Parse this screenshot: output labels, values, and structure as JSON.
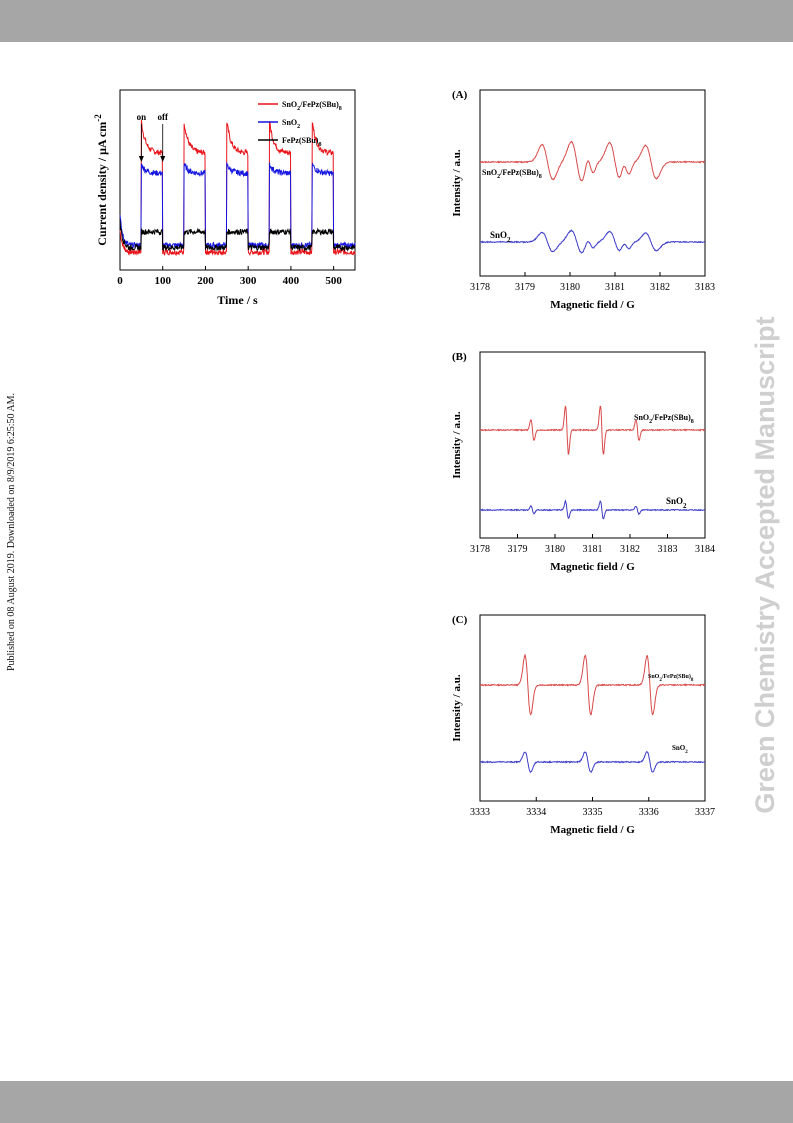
{
  "page": {
    "side_note": "Published on 08 August 2019. Downloaded on 8/9/2019 6:25:50 AM.",
    "watermark": "Green Chemistry Accepted Manuscript"
  },
  "chart_data": [
    {
      "type": "line",
      "panel": "photocurrent",
      "xlabel": "Time / s",
      "ylabel": "Current density / μA cm",
      "ylabel_superscript": "-2",
      "xlim": [
        0,
        550
      ],
      "xticks": [
        0,
        100,
        200,
        300,
        400,
        500
      ],
      "annotations": [
        {
          "text": "on",
          "x": 50
        },
        {
          "text": "off",
          "x": 100
        }
      ],
      "legend": [
        {
          "label": "SnO2/FePz(SBu)8",
          "color": "#e8141a"
        },
        {
          "label": "SnO2",
          "color": "#1515e0"
        },
        {
          "label": "FePz(SBu)8",
          "color": "#000000"
        }
      ],
      "on_intervals": [
        [
          50,
          100
        ],
        [
          150,
          200
        ],
        [
          250,
          300
        ],
        [
          350,
          400
        ],
        [
          450,
          500
        ]
      ],
      "series": [
        {
          "name": "SnO2/FePz(SBu)8",
          "color": "#e8141a",
          "dark": 0.8,
          "peak": 6.6,
          "plateau": 5.2
        },
        {
          "name": "SnO2",
          "color": "#1515e0",
          "dark": 1.1,
          "peak": 4.7,
          "plateau": 4.3
        },
        {
          "name": "FePz(SBu)8",
          "color": "#000000",
          "dark": 1.0,
          "peak": 1.7,
          "plateau": 1.7
        }
      ]
    },
    {
      "type": "line",
      "panel": "(A)",
      "xlabel": "Magnetic field / G",
      "ylabel": "Intensity / a.u.",
      "xlim": [
        3178,
        3183
      ],
      "xticks": [
        3178,
        3179,
        3180,
        3181,
        3182,
        3183
      ],
      "series": [
        {
          "name": "SnO2/FePz(SBu)8",
          "color": "#d84a4a",
          "peaks": [
            {
              "x": 3179.5,
              "a": 1.0,
              "w": 0.12
            },
            {
              "x": 3180.15,
              "a": 1.15,
              "w": 0.12
            },
            {
              "x": 3180.45,
              "a": 0.55,
              "w": 0.07
            },
            {
              "x": 3181.0,
              "a": 1.1,
              "w": 0.12
            },
            {
              "x": 3181.25,
              "a": 0.55,
              "w": 0.07
            },
            {
              "x": 3181.8,
              "a": 0.95,
              "w": 0.12
            }
          ]
        },
        {
          "name": "SnO2",
          "color": "#3b3bc8",
          "peaks": [
            {
              "x": 3179.5,
              "a": 0.55,
              "w": 0.12
            },
            {
              "x": 3180.15,
              "a": 0.65,
              "w": 0.12
            },
            {
              "x": 3180.45,
              "a": 0.3,
              "w": 0.07
            },
            {
              "x": 3181.0,
              "a": 0.6,
              "w": 0.12
            },
            {
              "x": 3181.25,
              "a": 0.3,
              "w": 0.07
            },
            {
              "x": 3181.8,
              "a": 0.5,
              "w": 0.12
            }
          ]
        }
      ]
    },
    {
      "type": "line",
      "panel": "(B)",
      "xlabel": "Magnetic field / G",
      "ylabel": "Intensity / a.u.",
      "xlim": [
        3178,
        3184
      ],
      "xticks": [
        3178,
        3179,
        3180,
        3181,
        3182,
        3183,
        3184
      ],
      "series": [
        {
          "name": "SnO2/FePz(SBu)8",
          "color": "#d84a4a",
          "peaks": [
            {
              "x": 3179.4,
              "a": 0.6,
              "w": 0.04
            },
            {
              "x": 3180.32,
              "a": 1.4,
              "w": 0.04
            },
            {
              "x": 3181.25,
              "a": 1.4,
              "w": 0.04
            },
            {
              "x": 3182.2,
              "a": 0.6,
              "w": 0.04
            }
          ]
        },
        {
          "name": "SnO2",
          "color": "#3b3bc8",
          "peaks": [
            {
              "x": 3179.4,
              "a": 0.22,
              "w": 0.04
            },
            {
              "x": 3180.32,
              "a": 0.5,
              "w": 0.04
            },
            {
              "x": 3181.25,
              "a": 0.5,
              "w": 0.04
            },
            {
              "x": 3182.2,
              "a": 0.22,
              "w": 0.04
            }
          ]
        }
      ]
    },
    {
      "type": "line",
      "panel": "(C)",
      "xlabel": "Magnetic field / G",
      "ylabel": "Intensity / a.u.",
      "xlim": [
        3333,
        3337
      ],
      "xticks": [
        3333,
        3334,
        3335,
        3336,
        3337
      ],
      "series": [
        {
          "name": "SnO2/FePz(SBu)8",
          "color": "#d84a4a",
          "peaks": [
            {
              "x": 3333.85,
              "a": 1.6,
              "w": 0.05
            },
            {
              "x": 3334.92,
              "a": 1.6,
              "w": 0.05
            },
            {
              "x": 3336.02,
              "a": 1.6,
              "w": 0.05
            }
          ]
        },
        {
          "name": "SnO2",
          "color": "#3b3bc8",
          "peaks": [
            {
              "x": 3333.85,
              "a": 0.55,
              "w": 0.05
            },
            {
              "x": 3334.92,
              "a": 0.55,
              "w": 0.05
            },
            {
              "x": 3336.02,
              "a": 0.55,
              "w": 0.05
            }
          ]
        }
      ]
    }
  ]
}
